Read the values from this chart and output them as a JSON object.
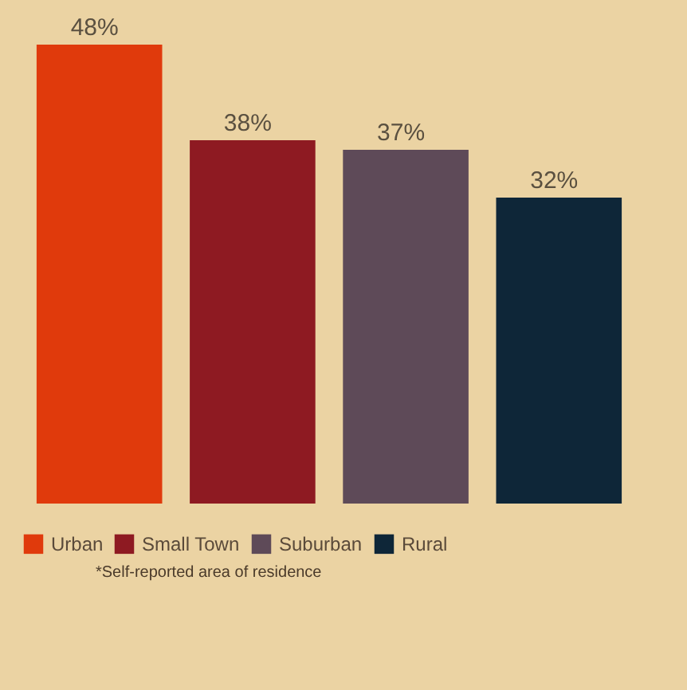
{
  "chart_data": {
    "type": "bar",
    "categories": [
      null
    ],
    "series": [
      {
        "name": "Urban",
        "color": "#e03a0c",
        "values": [
          48
        ],
        "value_labels": [
          "48%"
        ]
      },
      {
        "name": "Small Town",
        "color": "#8e1a22",
        "values": [
          38
        ],
        "value_labels": [
          "38%"
        ]
      },
      {
        "name": "Suburban",
        "color": "#5e4a58",
        "values": [
          37
        ],
        "value_labels": [
          "37%"
        ]
      },
      {
        "name": "Rural",
        "color": "#0e2638",
        "values": [
          32
        ],
        "value_labels": [
          "32%"
        ]
      }
    ],
    "legend": "bottom",
    "tick_labels": false,
    "annotations": [
      "*Self-reported area of residence"
    ]
  }
}
